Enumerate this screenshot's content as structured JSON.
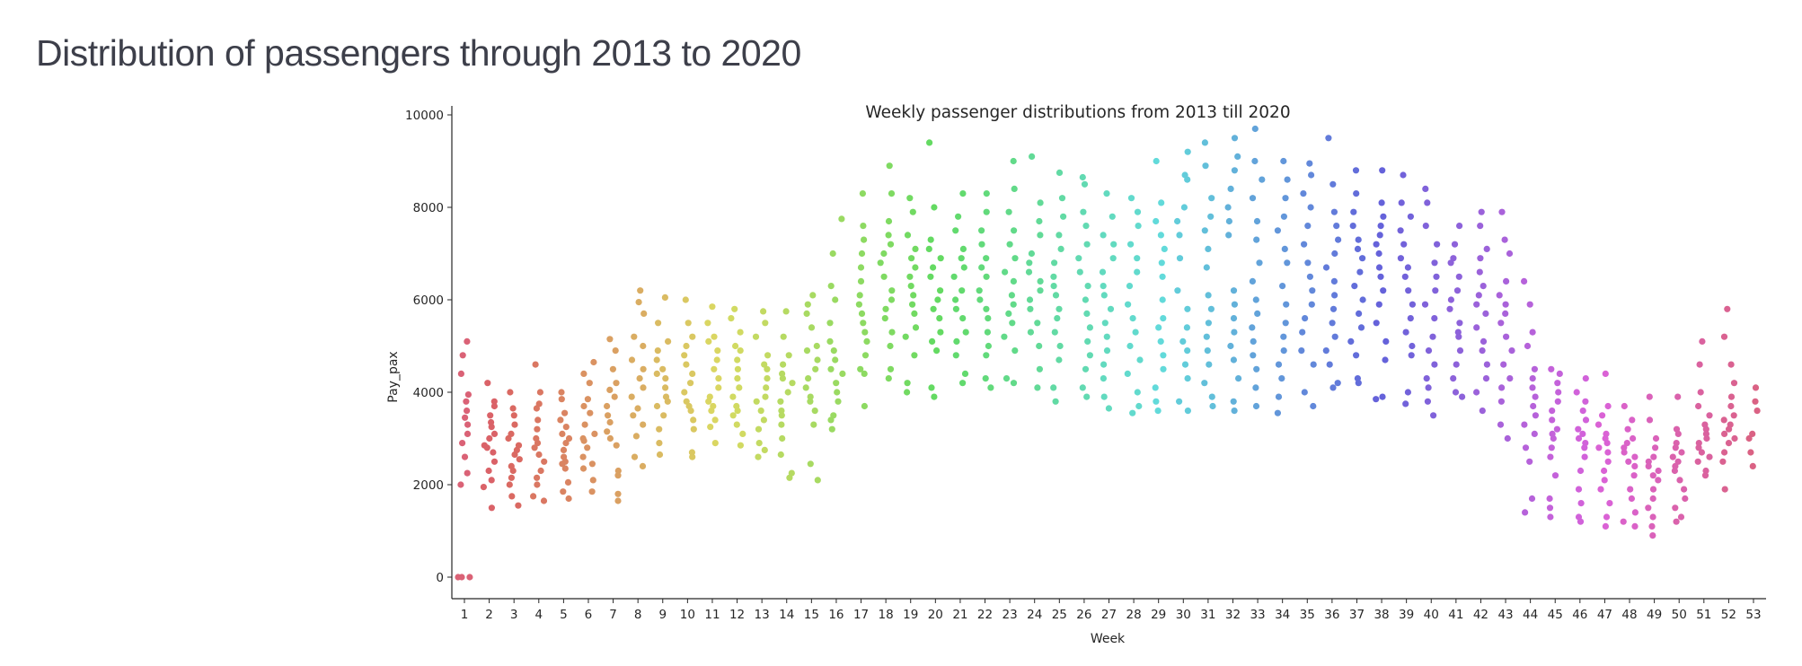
{
  "page": {
    "heading": "Distribution of passengers through 2013 to 2020"
  },
  "chart_data": {
    "type": "scatter",
    "subtype": "strip",
    "title": "Weekly passenger distributions from 2013 till 2020",
    "xlabel": "Week",
    "ylabel": "Pay_pax",
    "ylim": [
      -500,
      10000
    ],
    "yticks": [
      0,
      2000,
      4000,
      6000,
      8000,
      10000
    ],
    "categories": [
      1,
      2,
      3,
      4,
      5,
      6,
      7,
      8,
      9,
      10,
      11,
      12,
      13,
      14,
      15,
      16,
      17,
      18,
      19,
      20,
      21,
      22,
      23,
      24,
      25,
      26,
      27,
      28,
      29,
      30,
      31,
      32,
      33,
      34,
      35,
      36,
      37,
      38,
      39,
      40,
      41,
      42,
      43,
      44,
      45,
      46,
      47,
      48,
      49,
      50,
      51,
      52,
      53
    ],
    "palette": "husl",
    "grid": false,
    "legend": "none",
    "values": [
      [
        0,
        0,
        0,
        2000,
        2250,
        2600,
        2900,
        3100,
        3300,
        3450,
        3600,
        3800,
        3950,
        4400,
        4800,
        5100
      ],
      [
        1500,
        1950,
        2100,
        2300,
        2500,
        2700,
        2850,
        3000,
        3100,
        3250,
        3350,
        3500,
        3700,
        3800,
        4200,
        2800
      ],
      [
        1550,
        1750,
        2000,
        2150,
        2300,
        2400,
        2550,
        2650,
        2750,
        2850,
        3000,
        3100,
        3300,
        3500,
        3650,
        4000
      ],
      [
        1650,
        1750,
        2000,
        2150,
        2300,
        2500,
        2650,
        2800,
        2900,
        3000,
        3200,
        3400,
        3650,
        3750,
        4000,
        4600
      ],
      [
        1700,
        1850,
        2050,
        2350,
        2500,
        2600,
        2750,
        2900,
        3000,
        3100,
        3250,
        3400,
        3550,
        3850,
        4000,
        2450
      ],
      [
        1850,
        2100,
        2350,
        2450,
        2600,
        2800,
        2950,
        3000,
        3100,
        3300,
        3550,
        3700,
        3850,
        4200,
        4400,
        4650
      ],
      [
        1650,
        1800,
        2200,
        2300,
        2850,
        3000,
        3150,
        3350,
        3500,
        3700,
        3900,
        4050,
        4200,
        4500,
        4900,
        5150
      ],
      [
        2400,
        2600,
        3050,
        3300,
        3500,
        3650,
        3900,
        4100,
        4300,
        4500,
        4700,
        5000,
        5200,
        5700,
        5950,
        6200
      ],
      [
        2650,
        2900,
        3200,
        3500,
        3700,
        3900,
        4100,
        4300,
        4500,
        4700,
        4900,
        5100,
        5500,
        6050,
        3800,
        4400
      ],
      [
        2600,
        2700,
        3200,
        3400,
        3600,
        3800,
        4000,
        4200,
        4400,
        4600,
        4800,
        5000,
        5200,
        5500,
        6000,
        3700
      ],
      [
        2900,
        3250,
        3400,
        3600,
        3800,
        3900,
        4100,
        4300,
        4500,
        4700,
        4900,
        5100,
        5200,
        5500,
        5850,
        3700
      ],
      [
        2850,
        3100,
        3300,
        3500,
        3700,
        3900,
        4100,
        4300,
        4500,
        4700,
        4900,
        5000,
        5300,
        5600,
        5800,
        3600
      ],
      [
        2600,
        2750,
        2900,
        3200,
        3400,
        3600,
        3800,
        3900,
        4100,
        4300,
        4500,
        4600,
        4800,
        5200,
        5500,
        5750
      ],
      [
        2150,
        2250,
        2650,
        3000,
        3300,
        3500,
        3600,
        3800,
        4000,
        4200,
        4300,
        4400,
        4600,
        4800,
        5200,
        5750
      ],
      [
        2100,
        2450,
        3300,
        3600,
        3800,
        3900,
        4100,
        4300,
        4500,
        4700,
        4900,
        5000,
        5400,
        5700,
        5900,
        6100
      ],
      [
        3200,
        3400,
        3500,
        3800,
        4000,
        4200,
        4400,
        4500,
        4700,
        4900,
        5100,
        5500,
        6000,
        6300,
        7000,
        7750
      ],
      [
        3700,
        4400,
        4500,
        4800,
        5100,
        5300,
        5500,
        5700,
        5900,
        6100,
        6400,
        6700,
        7000,
        7300,
        7600,
        8300
      ],
      [
        4300,
        4500,
        5000,
        5300,
        5600,
        5800,
        6000,
        6200,
        6500,
        6800,
        7000,
        7200,
        7400,
        7700,
        8300,
        8900
      ],
      [
        4000,
        4200,
        4800,
        5200,
        5400,
        5700,
        5900,
        6100,
        6300,
        6500,
        6700,
        6900,
        7100,
        7400,
        7900,
        8200
      ],
      [
        3900,
        4100,
        4900,
        5100,
        5300,
        5600,
        5800,
        6000,
        6200,
        6500,
        6700,
        6900,
        7100,
        7300,
        8000,
        9400
      ],
      [
        4200,
        4400,
        4800,
        5100,
        5300,
        5600,
        5800,
        6000,
        6200,
        6500,
        6700,
        6900,
        7100,
        7500,
        7800,
        8300
      ],
      [
        4100,
        4300,
        4800,
        5000,
        5300,
        5600,
        5800,
        6000,
        6200,
        6500,
        6700,
        6900,
        7200,
        7500,
        7900,
        8300
      ],
      [
        4200,
        4300,
        4900,
        5200,
        5500,
        5700,
        5900,
        6100,
        6400,
        6600,
        6900,
        7200,
        7500,
        7900,
        8400,
        9000
      ],
      [
        4100,
        4500,
        5000,
        5300,
        5500,
        5800,
        6000,
        6200,
        6400,
        6600,
        6800,
        7000,
        7400,
        7700,
        8100,
        9100
      ],
      [
        3800,
        4100,
        4700,
        5000,
        5300,
        5600,
        5800,
        6100,
        6300,
        6500,
        6800,
        7100,
        7400,
        7800,
        8200,
        8750
      ],
      [
        3900,
        4100,
        4500,
        4800,
        5100,
        5400,
        5700,
        6000,
        6300,
        6600,
        6900,
        7200,
        7600,
        7900,
        8500,
        8650
      ],
      [
        3650,
        3900,
        4300,
        4600,
        4900,
        5200,
        5500,
        5800,
        6100,
        6300,
        6600,
        6900,
        7200,
        7400,
        7800,
        8300
      ],
      [
        3550,
        3700,
        4000,
        4400,
        4700,
        5000,
        5300,
        5600,
        5900,
        6300,
        6600,
        6900,
        7200,
        7600,
        7900,
        8200
      ],
      [
        3600,
        3800,
        4100,
        4500,
        4800,
        5100,
        5400,
        5600,
        6000,
        6500,
        6800,
        7100,
        7400,
        7700,
        8100,
        9000
      ],
      [
        3600,
        3800,
        4300,
        4600,
        4900,
        5100,
        5400,
        5800,
        6200,
        6900,
        7400,
        7700,
        8000,
        8600,
        8700,
        9200
      ],
      [
        3700,
        3900,
        4200,
        4600,
        4900,
        5200,
        5500,
        5800,
        6100,
        6700,
        7100,
        7500,
        7800,
        8200,
        8900,
        9400
      ],
      [
        3600,
        3800,
        4300,
        4700,
        5000,
        5300,
        5600,
        5900,
        6200,
        7400,
        7700,
        8000,
        8400,
        8800,
        9100,
        9500
      ],
      [
        3700,
        4100,
        4500,
        4800,
        5100,
        5400,
        5700,
        6000,
        6400,
        6800,
        7300,
        7700,
        8200,
        8600,
        9000,
        9700
      ],
      [
        3550,
        3900,
        4300,
        4600,
        4900,
        5200,
        5500,
        5900,
        6300,
        6800,
        7100,
        7500,
        7800,
        8200,
        8600,
        9000
      ],
      [
        3700,
        4000,
        4600,
        4900,
        5300,
        5600,
        5900,
        6200,
        6500,
        6800,
        7200,
        7600,
        8000,
        8300,
        8700,
        8950
      ],
      [
        4100,
        4200,
        4600,
        4900,
        5200,
        5500,
        5800,
        6100,
        6400,
        6700,
        7000,
        7300,
        7600,
        7900,
        8500,
        9500
      ],
      [
        4200,
        4300,
        4800,
        5100,
        5400,
        5700,
        6000,
        6300,
        6600,
        6900,
        7100,
        7300,
        7600,
        7900,
        8300,
        8800
      ],
      [
        3850,
        3900,
        4700,
        5100,
        5500,
        5900,
        6200,
        6500,
        6700,
        7000,
        7200,
        7400,
        7600,
        7800,
        8100,
        8800
      ],
      [
        3750,
        4000,
        4800,
        5000,
        5300,
        5600,
        5900,
        6200,
        6500,
        6700,
        6900,
        7200,
        7500,
        7800,
        8100,
        8700
      ],
      [
        3500,
        3800,
        4100,
        4300,
        4600,
        4900,
        5200,
        5600,
        5900,
        6200,
        6500,
        6800,
        7200,
        7600,
        8100,
        8400
      ],
      [
        3900,
        4000,
        4300,
        4600,
        4900,
        5200,
        5500,
        5800,
        6000,
        6200,
        6500,
        6800,
        6900,
        7200,
        7600,
        5300
      ],
      [
        3600,
        4000,
        4300,
        4600,
        4900,
        5100,
        5400,
        5700,
        5900,
        6100,
        6300,
        6600,
        6900,
        7100,
        7600,
        7900
      ],
      [
        3000,
        3300,
        3800,
        4100,
        4300,
        4600,
        4900,
        5200,
        5500,
        5700,
        5900,
        6100,
        6400,
        7000,
        7300,
        7900
      ],
      [
        1400,
        1700,
        2500,
        2800,
        3100,
        3300,
        3500,
        3700,
        3900,
        4100,
        4300,
        4500,
        5000,
        5300,
        5900,
        6400
      ],
      [
        1300,
        1500,
        1700,
        2200,
        2600,
        2800,
        3000,
        3200,
        3400,
        3600,
        3800,
        4000,
        4200,
        4400,
        4500,
        3100
      ],
      [
        1200,
        1300,
        1600,
        1900,
        2300,
        2600,
        2800,
        3000,
        3200,
        3400,
        3600,
        3800,
        4000,
        4300,
        2900,
        3100
      ],
      [
        1100,
        1300,
        1600,
        1900,
        2100,
        2300,
        2500,
        2700,
        2900,
        3100,
        3300,
        3500,
        3700,
        4400,
        2800,
        3000
      ],
      [
        1100,
        1200,
        1400,
        1700,
        1900,
        2200,
        2400,
        2600,
        2800,
        3000,
        3200,
        3400,
        3700,
        2500,
        2700,
        2900
      ],
      [
        900,
        1100,
        1300,
        1500,
        1700,
        1900,
        2100,
        2300,
        2500,
        2600,
        2800,
        3000,
        3400,
        3900,
        2200,
        2400
      ],
      [
        1200,
        1300,
        1500,
        1700,
        1900,
        2100,
        2300,
        2500,
        2700,
        2900,
        3100,
        3200,
        3900,
        2400,
        2600,
        2800
      ],
      [
        2200,
        2300,
        2500,
        2600,
        2800,
        2900,
        3000,
        3100,
        3200,
        3300,
        3500,
        3700,
        4000,
        4600,
        5100,
        2700
      ],
      [
        1900,
        2500,
        2700,
        2900,
        3000,
        3100,
        3200,
        3300,
        3400,
        3500,
        3700,
        3900,
        4200,
        4600,
        5200,
        5800
      ],
      [
        2400,
        2700,
        3000,
        3100,
        3600,
        3800,
        4100
      ]
    ]
  }
}
